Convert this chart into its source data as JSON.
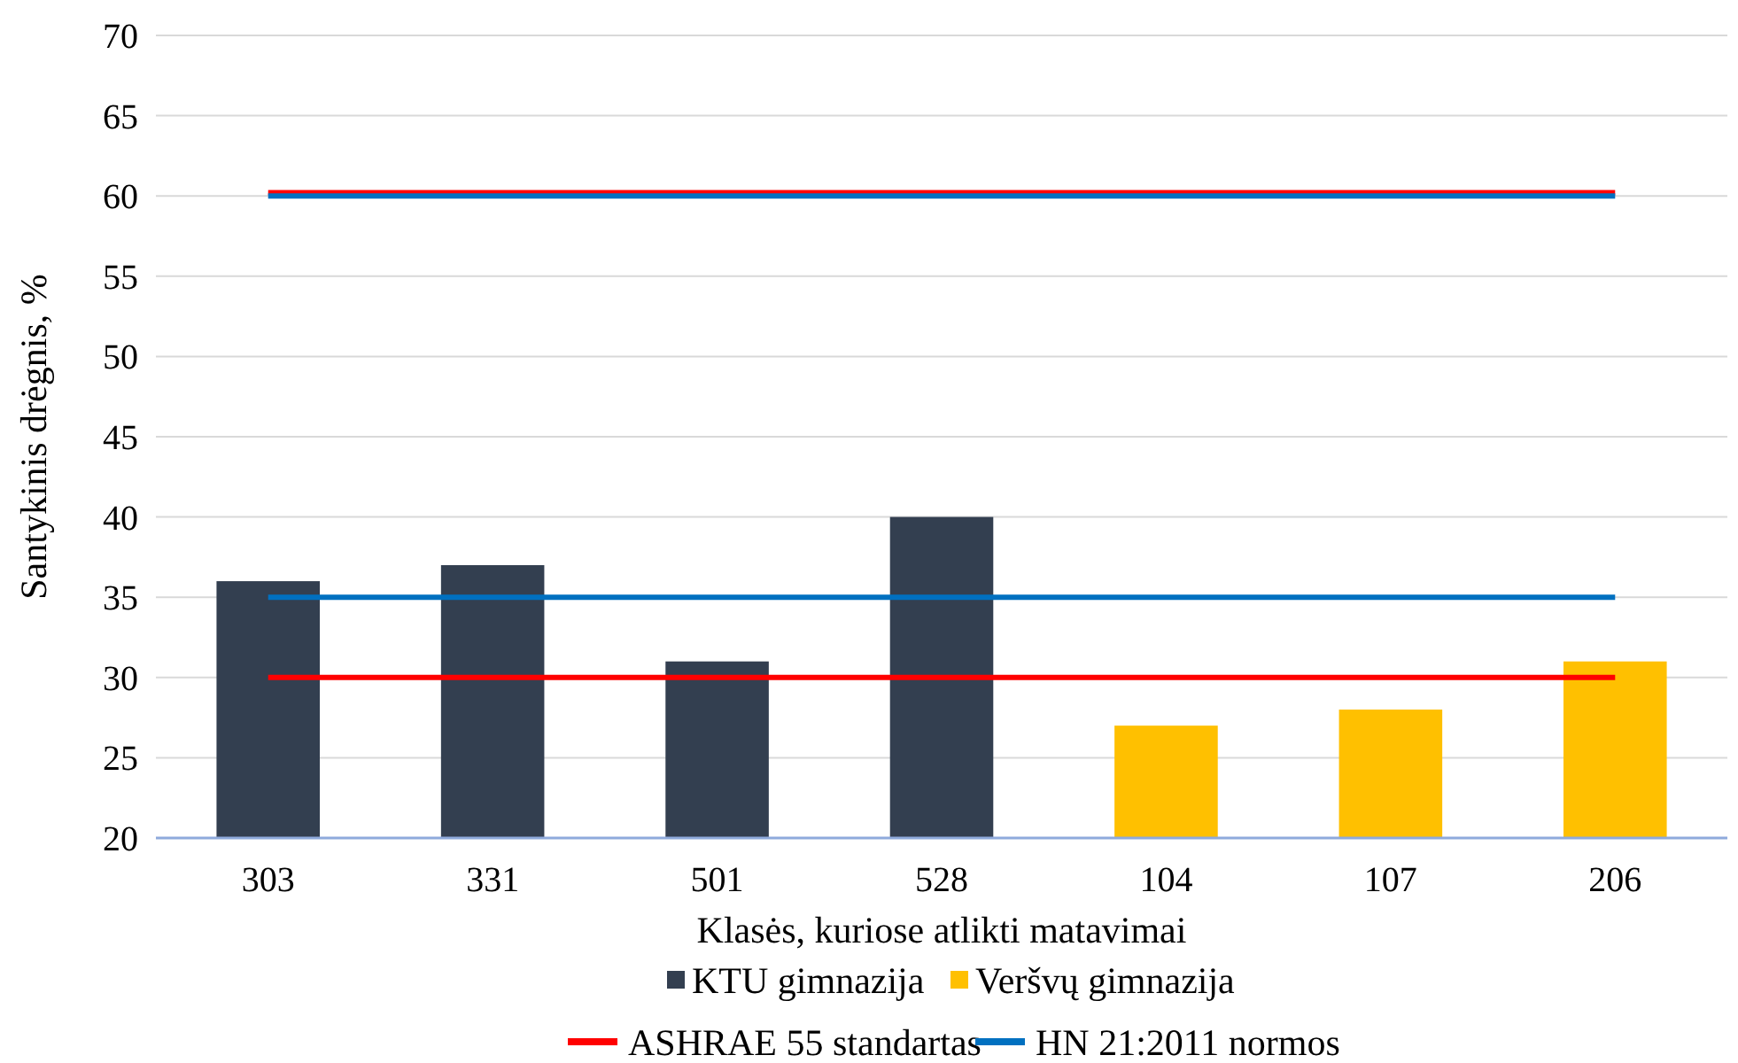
{
  "chart_data": {
    "type": "bar",
    "xlabel": "Klasės, kuriose atlikti matavimai",
    "ylabel": "Santykinis drėgnis, %",
    "categories": [
      "303",
      "331",
      "501",
      "528",
      "104",
      "107",
      "206"
    ],
    "series": [
      {
        "name": "KTU gimnazija",
        "color": "#333f50",
        "values": [
          36,
          37,
          31,
          40,
          null,
          null,
          null
        ]
      },
      {
        "name": "Veršvų gimnazija",
        "color": "#ffc000",
        "values": [
          null,
          null,
          null,
          null,
          27,
          28,
          31
        ]
      },
      {
        "type": "line",
        "name": "ASHRAE 55 standartas",
        "color": "#ff0000",
        "values": [
          30,
          30,
          30,
          30,
          30,
          30,
          30
        ]
      },
      {
        "type": "line",
        "color": "#ff0000",
        "values": [
          60.2,
          60.2,
          60.2,
          60.2,
          60.2,
          60.2,
          60.2
        ]
      },
      {
        "type": "line",
        "name": "HN 21:2011 normos",
        "color": "#0070c0",
        "values": [
          35,
          35,
          35,
          35,
          35,
          35,
          35
        ]
      },
      {
        "type": "line",
        "color": "#0070c0",
        "values": [
          60,
          60,
          60,
          60,
          60,
          60,
          60
        ]
      }
    ],
    "ylim": [
      20,
      70
    ],
    "yticks": [
      20,
      25,
      30,
      35,
      40,
      45,
      50,
      55,
      60,
      65,
      70
    ],
    "grid": "y",
    "legend": "bottom"
  }
}
